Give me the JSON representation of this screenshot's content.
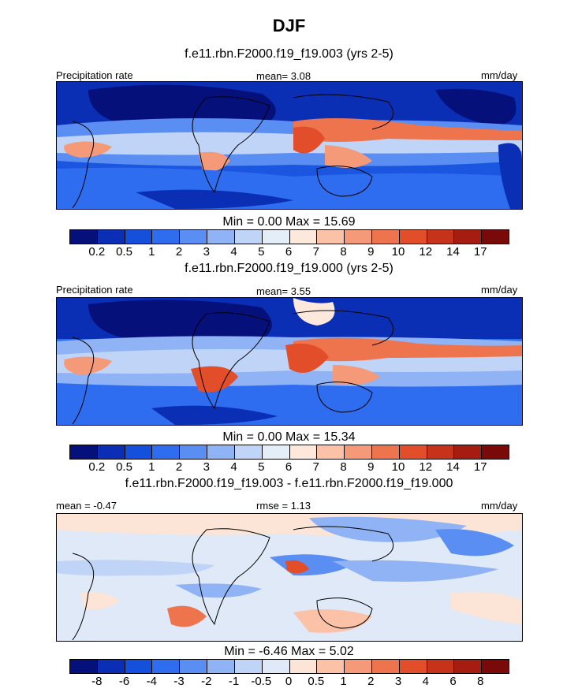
{
  "figure": {
    "title": "DJF"
  },
  "palettes": {
    "abs": [
      "#06107a",
      "#0b2fb4",
      "#1550dc",
      "#2e6cf0",
      "#5a8ef2",
      "#8fb3f4",
      "#bfd4f6",
      "#e4eef8",
      "#fde8dc",
      "#fbc2a8",
      "#f59a78",
      "#ee744e",
      "#e24e2a",
      "#c7321a",
      "#a51c10",
      "#7a0a0a"
    ],
    "diff": [
      "#06107a",
      "#0b2fb4",
      "#1550dc",
      "#2e6cf0",
      "#5a8ef2",
      "#8fb3f4",
      "#bfd4f6",
      "#dfe9f7",
      "#fce4d6",
      "#fbc2a8",
      "#f59a78",
      "#ee744e",
      "#e24e2a",
      "#c7321a",
      "#a51c10",
      "#7a0a0a"
    ]
  },
  "chart_data": [
    {
      "type": "heatmap",
      "title": "f.e11.rbn.F2000.f19_f19.003 (yrs 2-5)",
      "left_label": "Precipitation rate",
      "stat_label": "mean=",
      "stat_value": "3.08",
      "units": "mm/day",
      "min_label": "Min =",
      "min_value": "0.00",
      "max_label": "Max =",
      "max_value": "15.69",
      "colorbar_levels": [
        "0.2",
        "0.5",
        "1",
        "2",
        "3",
        "4",
        "5",
        "6",
        "7",
        "8",
        "9",
        "10",
        "12",
        "14",
        "17"
      ],
      "palette": "abs"
    },
    {
      "type": "heatmap",
      "title": "f.e11.rbn.F2000.f19_f19.000 (yrs 2-5)",
      "left_label": "Precipitation rate",
      "stat_label": "mean=",
      "stat_value": "3.55",
      "units": "mm/day",
      "min_label": "Min =",
      "min_value": "0.00",
      "max_label": "Max =",
      "max_value": "15.34",
      "colorbar_levels": [
        "0.2",
        "0.5",
        "1",
        "2",
        "3",
        "4",
        "5",
        "6",
        "7",
        "8",
        "9",
        "10",
        "12",
        "14",
        "17"
      ],
      "palette": "abs"
    },
    {
      "type": "heatmap",
      "title": "f.e11.rbn.F2000.f19_f19.003 - f.e11.rbn.F2000.f19_f19.000",
      "left_label": "mean =",
      "left_value": "-0.47",
      "stat_label": "rmse =",
      "stat_value": "1.13",
      "units": "mm/day",
      "min_label": "Min =",
      "min_value": "-6.46",
      "max_label": "Max =",
      "max_value": "5.02",
      "colorbar_levels": [
        "-8",
        "-6",
        "-4",
        "-3",
        "-2",
        "-1",
        "-0.5",
        "0",
        "0.5",
        "1",
        "2",
        "3",
        "4",
        "6",
        "8"
      ],
      "palette": "diff"
    }
  ]
}
